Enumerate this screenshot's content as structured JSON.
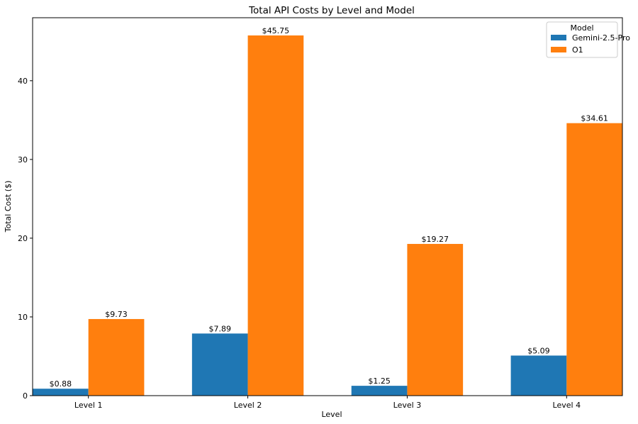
{
  "chart_data": {
    "type": "bar",
    "title": "Total API Costs by Level and Model",
    "xlabel": "Level",
    "ylabel": "Total Cost ($)",
    "categories": [
      "Level 1",
      "Level 2",
      "Level 3",
      "Level 4"
    ],
    "ylim": [
      0,
      48.0
    ],
    "yticks": [
      0,
      10,
      20,
      30,
      40
    ],
    "grid": false,
    "legend": {
      "title": "Model",
      "placement": "top-right"
    },
    "series": [
      {
        "name": "Gemini-2.5-Pro",
        "color": "#1f77b4",
        "values": [
          0.88,
          7.89,
          1.25,
          5.09
        ],
        "labels": [
          "$0.88",
          "$7.89",
          "$1.25",
          "$5.09"
        ]
      },
      {
        "name": "O1",
        "color": "#ff7f0e",
        "values": [
          9.73,
          45.75,
          19.27,
          34.61
        ],
        "labels": [
          "$9.73",
          "$45.75",
          "$19.27",
          "$34.61"
        ]
      }
    ]
  }
}
